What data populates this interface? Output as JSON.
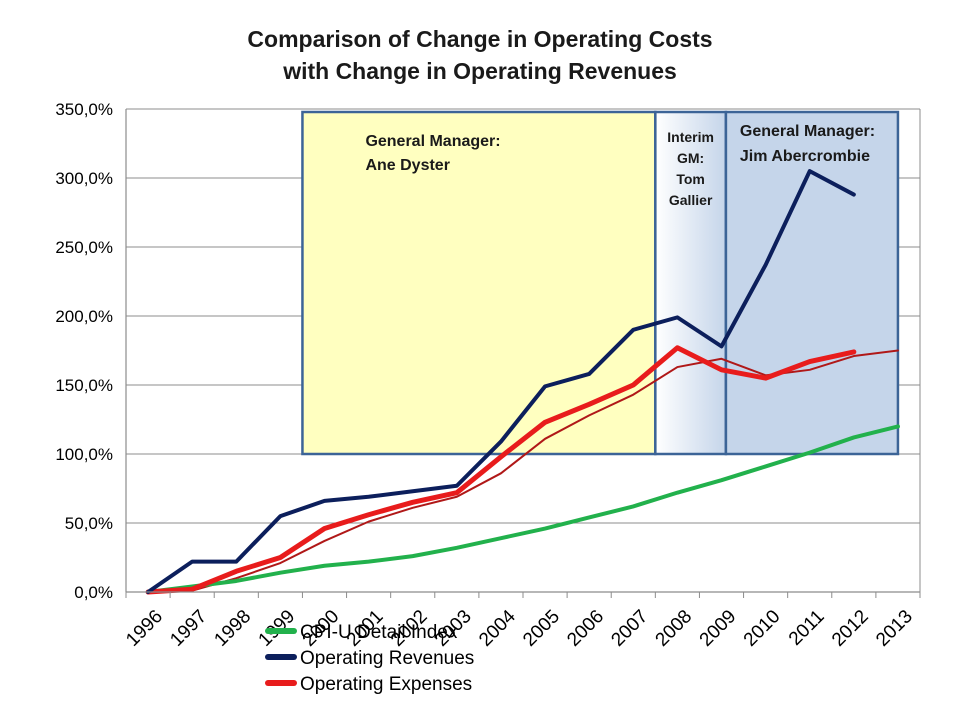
{
  "chart_data": {
    "type": "line",
    "title_line1": "Comparison of Change in Operating Costs",
    "title_line2": "with Change in Operating Revenues",
    "x": [
      "1996",
      "1997",
      "1998",
      "1999",
      "2000",
      "2001",
      "2002",
      "2003",
      "2004",
      "2005",
      "2006",
      "2007",
      "2008",
      "2009",
      "2010",
      "2011",
      "2012",
      "2013"
    ],
    "ylim": [
      0,
      350
    ],
    "yticks": [
      "0,0%",
      "50,0%",
      "100,0%",
      "150,0%",
      "200,0%",
      "250,0%",
      "300,0%",
      "350,0%"
    ],
    "ytick_values": [
      0,
      50,
      100,
      150,
      200,
      250,
      300,
      350
    ],
    "grid": true,
    "legend_position": "bottom-left",
    "series": [
      {
        "name": "CPI-U Detail Index",
        "color": "#22b14c",
        "width": 4,
        "values": [
          0,
          4,
          8,
          14,
          19,
          22,
          26,
          32,
          39,
          46,
          54,
          62,
          72,
          81,
          91,
          101,
          112,
          120
        ]
      },
      {
        "name": "Operating Revenues",
        "color": "#0c1f5c",
        "width": 4,
        "values": [
          0,
          22,
          22,
          55,
          66,
          69,
          73,
          77,
          109,
          149,
          158,
          190,
          199,
          178,
          237,
          305,
          288,
          null
        ]
      },
      {
        "name": "Operating Expenses",
        "color": "#e81c1c",
        "width": 5,
        "values": [
          0,
          2,
          15,
          25,
          46,
          56,
          65,
          72,
          98,
          123,
          136,
          150,
          177,
          161,
          155,
          167,
          174,
          null
        ]
      },
      {
        "name": "",
        "color": "#b01818",
        "width": 2,
        "legend": false,
        "values": [
          0,
          1,
          10,
          21,
          37,
          51,
          61,
          69,
          86,
          111,
          128,
          143,
          163,
          169,
          157,
          161,
          171,
          175
        ]
      }
    ],
    "annotations": [
      {
        "label_lines": [
          "General Manager:",
          "Ane Dyster"
        ],
        "x_from": "1999.5",
        "x_to": "2007.5",
        "fill": "#ffffc0"
      },
      {
        "label_lines": [
          "Interim",
          "GM:",
          "Tom",
          "Gallier"
        ],
        "x_from": "2007.5",
        "x_to": "2009.1",
        "fill": "gradient"
      },
      {
        "label_lines": [
          "General Manager:",
          "Jim Abercrombie"
        ],
        "x_from": "2009.1",
        "x_to": "2013",
        "fill": "#c5d5ea"
      }
    ]
  }
}
